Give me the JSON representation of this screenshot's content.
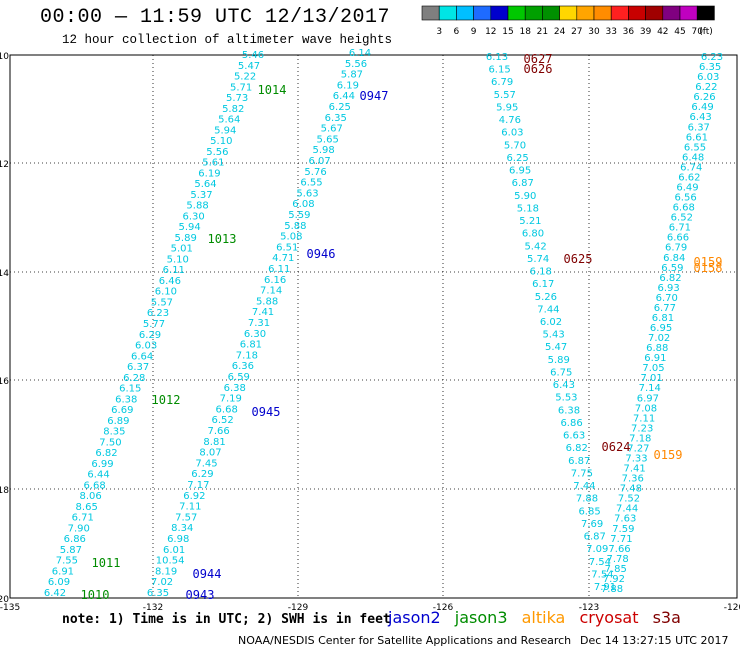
{
  "title": "00:00 — 11:59 UTC 12/13/2017",
  "subtitle": "12 hour collection of altimeter wave heights",
  "colorbar": {
    "unit": "(ft)",
    "labels": [
      "3",
      "6",
      "9",
      "12",
      "15",
      "18",
      "21",
      "24",
      "27",
      "30",
      "33",
      "36",
      "39",
      "42",
      "45",
      "70"
    ],
    "colors": [
      "#7f7f7f",
      "#00e5e5",
      "#00bfff",
      "#1e6bff",
      "#0000cd",
      "#00c800",
      "#00a000",
      "#009000",
      "#ffd700",
      "#ffa500",
      "#ff8c00",
      "#ff2020",
      "#c80000",
      "#a00000",
      "#800080",
      "#c000c0",
      "#000000"
    ]
  },
  "axes": {
    "lon_labels": [
      "-135",
      "-132",
      "-129",
      "-126",
      "-123",
      "-120"
    ],
    "lat_labels": [
      "10",
      "12",
      "14",
      "16",
      "18",
      "20"
    ]
  },
  "note": "note:  1) Time is in UTC;  2) SWH is in feet",
  "legend": [
    {
      "name": "jason2",
      "color": "#0000cd"
    },
    {
      "name": "jason3",
      "color": "#008c00"
    },
    {
      "name": "altika",
      "color": "#ff9900"
    },
    {
      "name": "cryosat",
      "color": "#cc0000"
    },
    {
      "name": "s3a",
      "color": "#800000"
    }
  ],
  "credit": "NOAA/NESDIS Center for Satellite Applications and Research",
  "datestamp": "Dec 14 13:27:15 UTC 2017",
  "tracks": [
    {
      "id": "jason3-1",
      "satellite": "jason3",
      "color": "#00c8e0",
      "values": [
        "5.46",
        "5.47",
        "5.22",
        "5.71",
        "5.73",
        "5.82",
        "5.64",
        "5.94",
        "5.10",
        "5.56",
        "5.61",
        "6.19",
        "5.64",
        "5.37",
        "5.88",
        "6.30",
        "5.94",
        "5.89",
        "5.01",
        "5.10",
        "6.11",
        "6.46",
        "6.10",
        "5.57",
        "6.23",
        "5.77",
        "6.29",
        "6.03",
        "6.64",
        "6.37",
        "6.28",
        "6.15",
        "6.38",
        "6.69",
        "6.89",
        "8.35",
        "7.50",
        "6.82",
        "6.99",
        "6.44",
        "6.68",
        "8.06",
        "8.65",
        "6.71",
        "7.90",
        "6.86",
        "5.87",
        "7.55",
        "6.91",
        "6.09",
        "6.42"
      ],
      "times": [
        "1014",
        "1013",
        "1012",
        "1011",
        "1010"
      ]
    },
    {
      "id": "jason3-2",
      "satellite": "jason2",
      "color": "#00c8e0",
      "values": [
        "6.14",
        "5.56",
        "5.87",
        "6.19",
        "6.44",
        "6.25",
        "6.35",
        "5.67",
        "5.65",
        "5.98",
        "6.07",
        "5.76",
        "6.55",
        "5.63",
        "6.08",
        "5.59",
        "5.88",
        "5.08",
        "6.51",
        "4.71",
        "6.11",
        "6.16",
        "7.14",
        "5.88",
        "7.41",
        "7.31",
        "6.30",
        "6.81",
        "7.18",
        "6.36",
        "6.59",
        "6.38",
        "7.19",
        "6.68",
        "6.52",
        "7.66",
        "8.81",
        "8.07",
        "7.45",
        "6.29",
        "7.17",
        "6.92",
        "7.11",
        "7.57",
        "8.34",
        "6.98",
        "6.01",
        "10.54",
        "8.19",
        "7.02",
        "6.35"
      ],
      "times": [
        "0947",
        "0946",
        "0945",
        "0944",
        "0943"
      ]
    },
    {
      "id": "cryosat-1",
      "satellite": "s3a",
      "color": "#00c8e0",
      "values": [
        "6.13",
        "6.15",
        "6.79",
        "5.57",
        "5.95",
        "4.76",
        "6.03",
        "5.70",
        "6.25",
        "6.95",
        "6.87",
        "5.90",
        "5.18",
        "5.21",
        "6.80",
        "5.42",
        "5.74",
        "6.18",
        "6.17",
        "5.26",
        "7.44",
        "6.02",
        "5.43",
        "5.47",
        "5.89",
        "6.75",
        "6.43",
        "5.53",
        "6.38",
        "6.86",
        "6.63",
        "6.82",
        "6.87",
        "7.75",
        "7.44",
        "7.88",
        "6.85",
        "7.69",
        "6.87",
        "7.09",
        "7.54",
        "7.54",
        "7.91"
      ],
      "times": [
        "0627",
        "0626",
        "0625",
        "0624"
      ]
    },
    {
      "id": "altika-1",
      "satellite": "altika",
      "color": "#00c8e0",
      "values": [
        "6.23",
        "6.35",
        "6.03",
        "6.22",
        "6.26",
        "6.49",
        "6.43",
        "6.37",
        "6.61",
        "6.55",
        "6.48",
        "6.74",
        "6.62",
        "6.49",
        "6.56",
        "6.68",
        "6.52",
        "6.71",
        "6.66",
        "6.79",
        "6.84",
        "6.59",
        "6.82",
        "6.93",
        "6.70",
        "6.77",
        "6.81",
        "6.95",
        "7.02",
        "6.88",
        "6.91",
        "7.05",
        "7.01",
        "7.14",
        "6.97",
        "7.08",
        "7.11",
        "7.23",
        "7.18",
        "7.27",
        "7.33",
        "7.41",
        "7.36",
        "7.48",
        "7.52",
        "7.44",
        "7.63",
        "7.59",
        "7.71",
        "7.66",
        "7.78",
        "7.85",
        "7.92",
        "7.88"
      ],
      "times": [
        "0159",
        "0158",
        "0159"
      ]
    }
  ]
}
